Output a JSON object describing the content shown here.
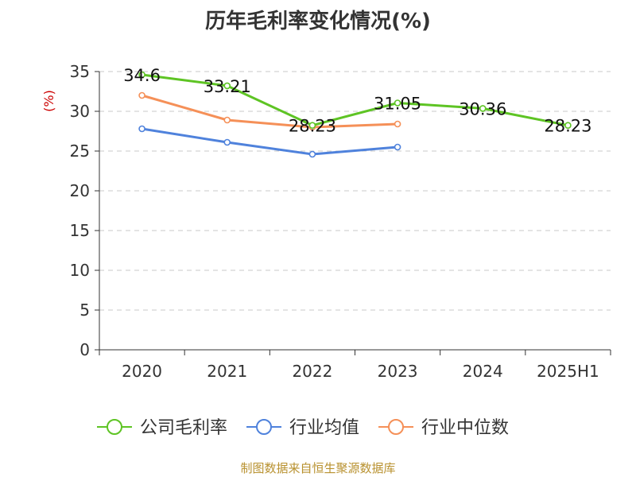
{
  "chart_data": {
    "type": "line",
    "title": "历年毛利率变化情况(%)",
    "ylabel": "(%)",
    "xlabel": "",
    "ylim": [
      0,
      35
    ],
    "yticks": [
      0,
      5,
      10,
      15,
      20,
      25,
      30,
      35
    ],
    "grid": true,
    "legend_position": "bottom",
    "categories": [
      "2020",
      "2021",
      "2022",
      "2023",
      "2024",
      "2025H1"
    ],
    "series": [
      {
        "name": "公司毛利率",
        "color": "#5ec424",
        "values": [
          34.6,
          33.21,
          28.23,
          31.05,
          30.36,
          28.23
        ],
        "labels": [
          "34.6",
          "33.21",
          "28.23",
          "31.05",
          "30.36",
          "28.23"
        ]
      },
      {
        "name": "行业均值",
        "color": "#4f82dc",
        "values": [
          27.8,
          26.1,
          24.6,
          25.5,
          null,
          null
        ]
      },
      {
        "name": "行业中位数",
        "color": "#f59058",
        "values": [
          32.0,
          28.9,
          28.0,
          28.4,
          null,
          null
        ]
      }
    ]
  },
  "source": "制图数据来自恒生聚源数据库",
  "colors": {
    "axis": "#333333",
    "grid": "#c8c8c8",
    "ylabel": "#cc0000",
    "source": "#b8912f"
  }
}
